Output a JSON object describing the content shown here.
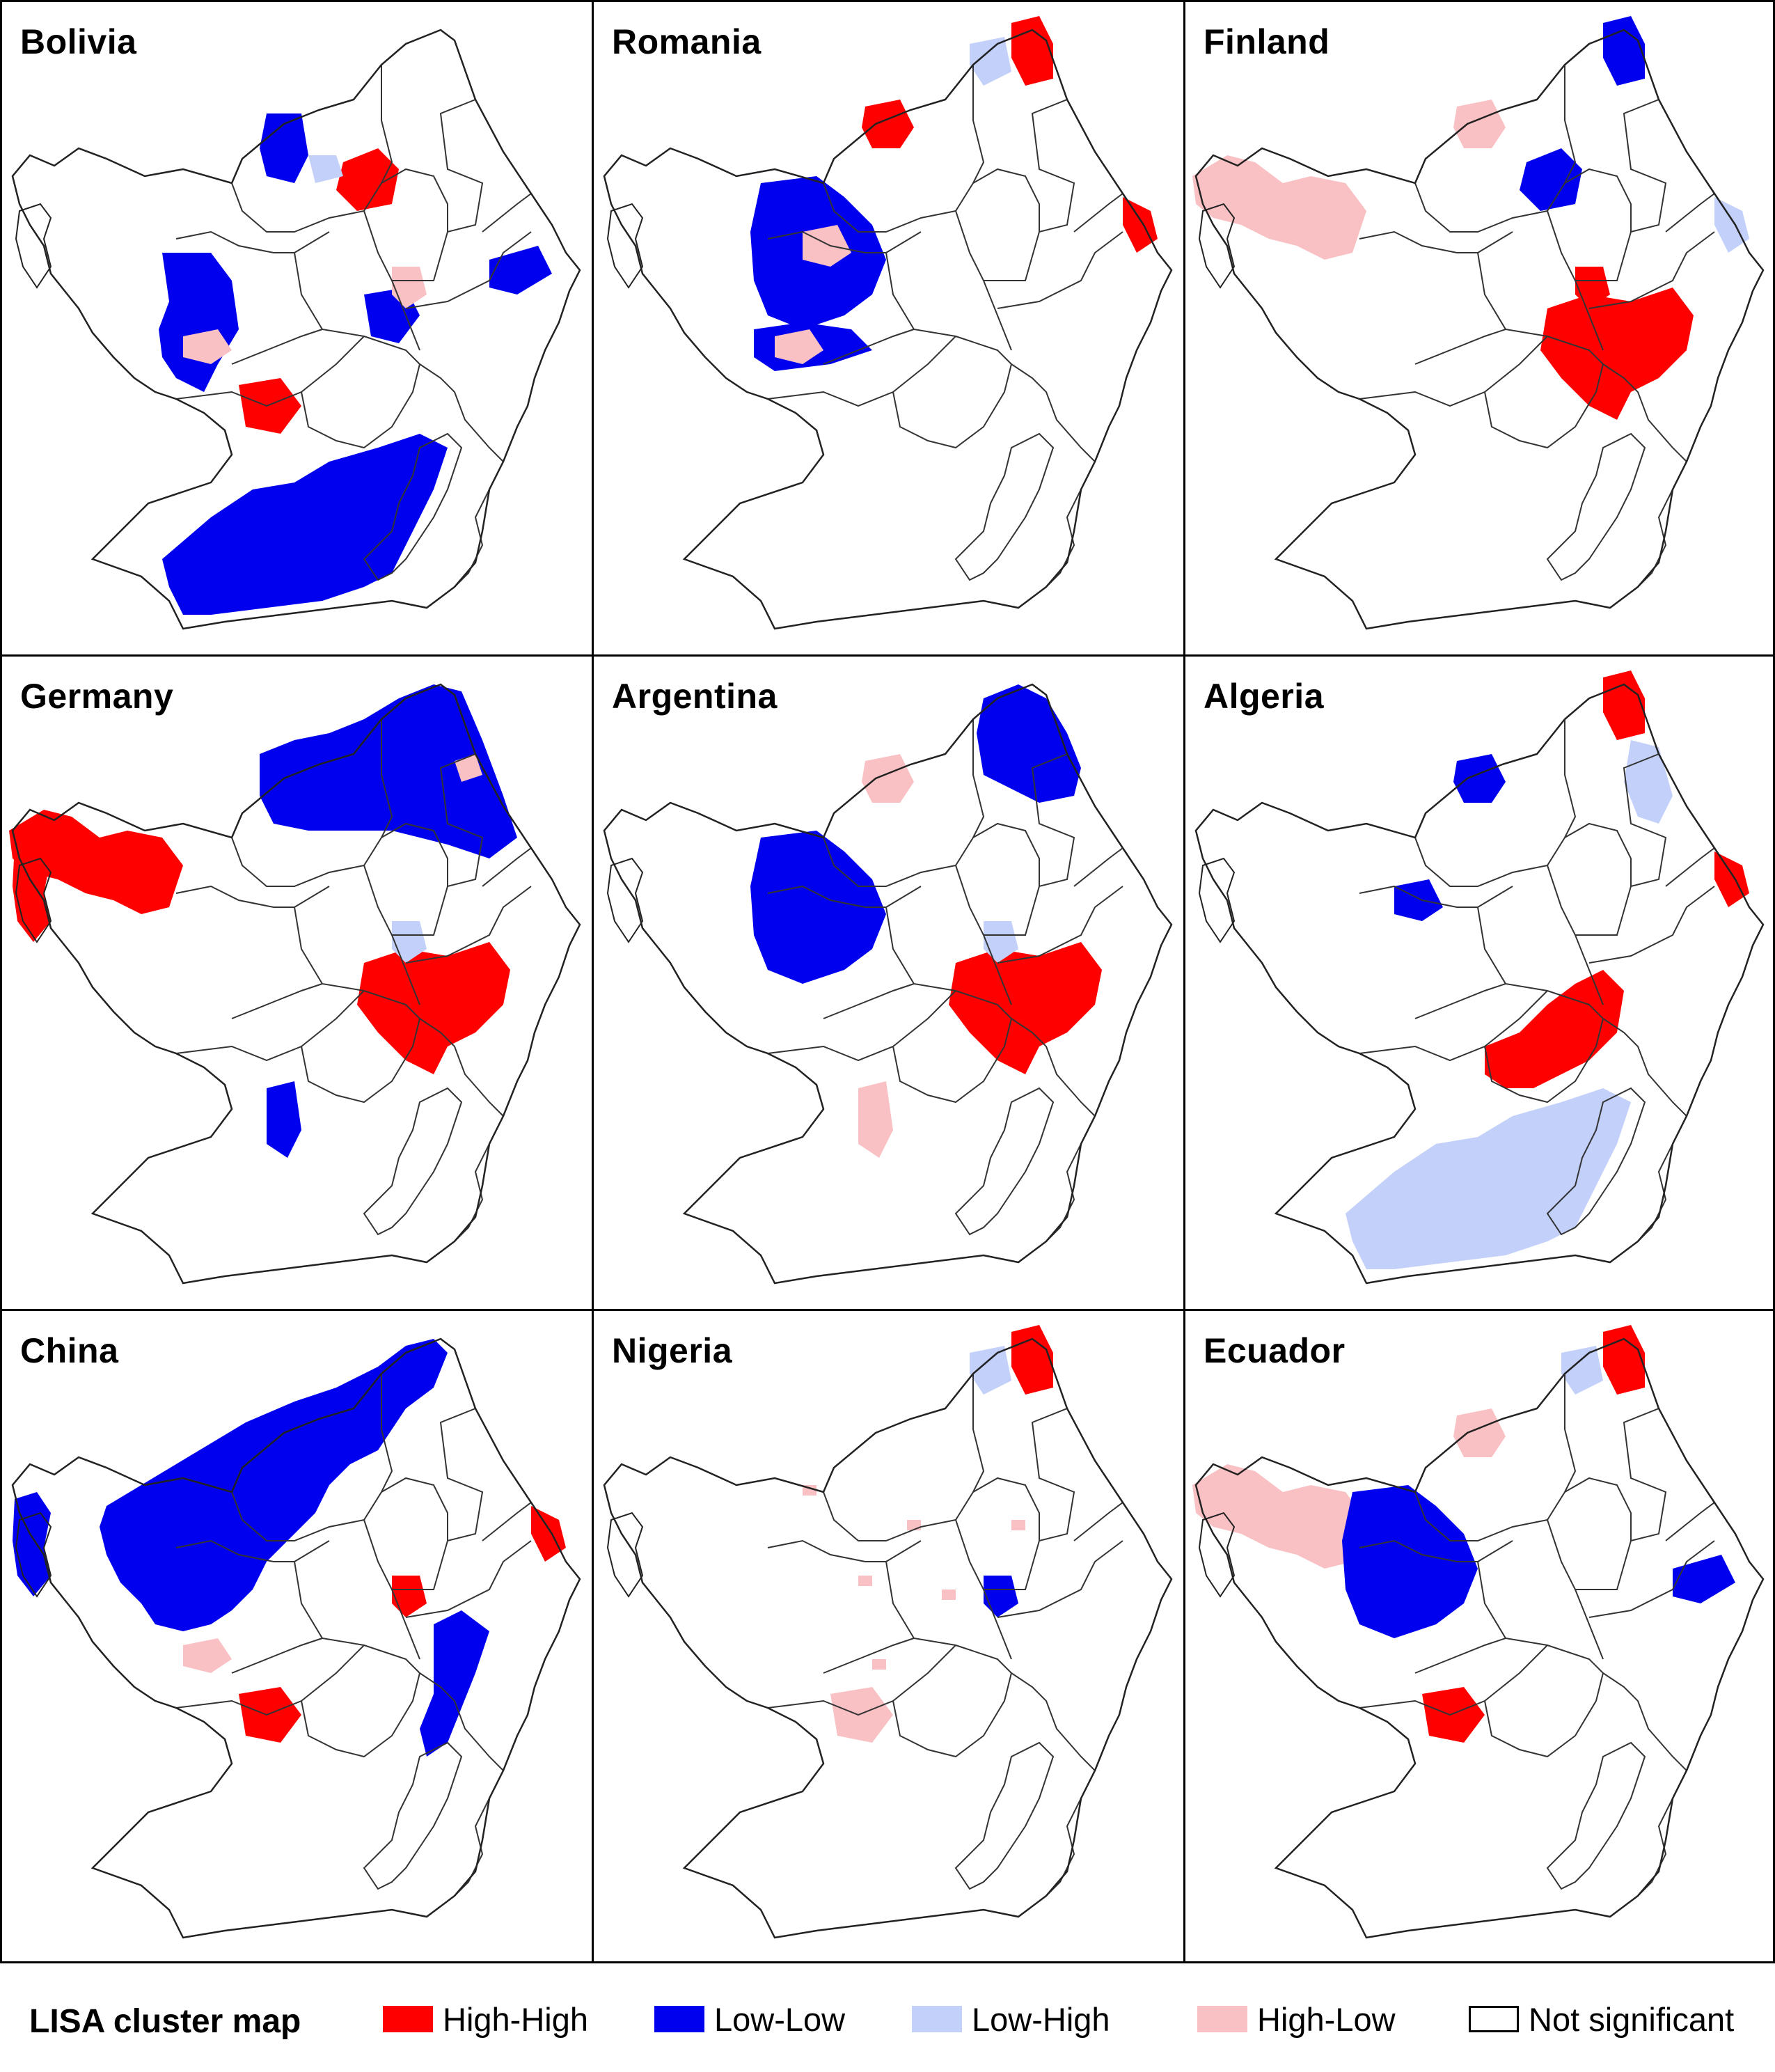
{
  "colors": {
    "high_high": "#ff0000",
    "low_low": "#0000ee",
    "low_high": "#c2d0fa",
    "high_low": "#f9c1c4",
    "not_significant": "#ffffff",
    "boundary": "#222222"
  },
  "panels": [
    {
      "title": "Bolivia",
      "regions": [
        {
          "cls": "low_low",
          "shape": "w_block"
        },
        {
          "cls": "low_low",
          "shape": "n_blob"
        },
        {
          "cls": "low_low",
          "shape": "port_zone"
        },
        {
          "cls": "low_low",
          "shape": "ne_patch"
        },
        {
          "cls": "low_low",
          "shape": "c_patch"
        },
        {
          "cls": "high_high",
          "shape": "n_small"
        },
        {
          "cls": "high_high",
          "shape": "sw_small"
        },
        {
          "cls": "high_low",
          "shape": "w_small"
        },
        {
          "cls": "high_low",
          "shape": "c_small"
        },
        {
          "cls": "low_high",
          "shape": "n_center"
        }
      ]
    },
    {
      "title": "Romania",
      "regions": [
        {
          "cls": "low_low",
          "shape": "wc_block"
        },
        {
          "cls": "low_low",
          "shape": "sw_strip"
        },
        {
          "cls": "high_high",
          "shape": "n_blob_small"
        },
        {
          "cls": "high_high",
          "shape": "ne_top"
        },
        {
          "cls": "high_high",
          "shape": "e_small"
        },
        {
          "cls": "low_high",
          "shape": "ne_top_left"
        },
        {
          "cls": "high_low",
          "shape": "w_small"
        },
        {
          "cls": "high_low",
          "shape": "wc_small"
        }
      ]
    },
    {
      "title": "Finland",
      "regions": [
        {
          "cls": "high_low",
          "shape": "w_lobe"
        },
        {
          "cls": "high_low",
          "shape": "n_blob_small"
        },
        {
          "cls": "high_high",
          "shape": "se_block"
        },
        {
          "cls": "high_high",
          "shape": "c_small"
        },
        {
          "cls": "low_low",
          "shape": "ne_top"
        },
        {
          "cls": "low_low",
          "shape": "n_small"
        },
        {
          "cls": "low_high",
          "shape": "e_small"
        }
      ]
    },
    {
      "title": "Germany",
      "regions": [
        {
          "cls": "high_high",
          "shape": "w_lobe"
        },
        {
          "cls": "high_high",
          "shape": "island"
        },
        {
          "cls": "high_high",
          "shape": "se_block"
        },
        {
          "cls": "low_low",
          "shape": "ne_big"
        },
        {
          "cls": "low_low",
          "shape": "s_small"
        },
        {
          "cls": "high_low",
          "shape": "ne_small"
        },
        {
          "cls": "low_high",
          "shape": "c_small"
        }
      ]
    },
    {
      "title": "Argentina",
      "regions": [
        {
          "cls": "low_low",
          "shape": "ne_big_small"
        },
        {
          "cls": "low_low",
          "shape": "wc_block"
        },
        {
          "cls": "high_high",
          "shape": "se_block"
        },
        {
          "cls": "high_low",
          "shape": "n_blob_small"
        },
        {
          "cls": "high_low",
          "shape": "s_small"
        },
        {
          "cls": "low_high",
          "shape": "c_small"
        }
      ]
    },
    {
      "title": "Algeria",
      "regions": [
        {
          "cls": "low_high",
          "shape": "port_zone"
        },
        {
          "cls": "low_high",
          "shape": "ne_strip"
        },
        {
          "cls": "high_high",
          "shape": "c_big"
        },
        {
          "cls": "high_high",
          "shape": "ne_top"
        },
        {
          "cls": "high_high",
          "shape": "e_small"
        },
        {
          "cls": "low_low",
          "shape": "n_blob_small"
        },
        {
          "cls": "low_low",
          "shape": "wc_small"
        }
      ]
    },
    {
      "title": "China",
      "regions": [
        {
          "cls": "low_low",
          "shape": "nw_huge"
        },
        {
          "cls": "low_low",
          "shape": "island"
        },
        {
          "cls": "low_low",
          "shape": "coast_strip"
        },
        {
          "cls": "high_high",
          "shape": "c_small"
        },
        {
          "cls": "high_high",
          "shape": "sw_small"
        },
        {
          "cls": "high_high",
          "shape": "e_small"
        },
        {
          "cls": "high_low",
          "shape": "w_small"
        }
      ]
    },
    {
      "title": "Nigeria",
      "regions": [
        {
          "cls": "high_high",
          "shape": "ne_top"
        },
        {
          "cls": "low_high",
          "shape": "ne_top_left"
        },
        {
          "cls": "low_low",
          "shape": "c_small"
        },
        {
          "cls": "high_low",
          "shape": "sw_small"
        },
        {
          "cls": "high_low",
          "shape": "scatter"
        }
      ]
    },
    {
      "title": "Ecuador",
      "regions": [
        {
          "cls": "high_low",
          "shape": "w_lobe"
        },
        {
          "cls": "high_low",
          "shape": "n_blob_small"
        },
        {
          "cls": "high_high",
          "shape": "ne_top"
        },
        {
          "cls": "high_high",
          "shape": "sw_small"
        },
        {
          "cls": "low_low",
          "shape": "wc_block"
        },
        {
          "cls": "low_low",
          "shape": "ne_patch"
        },
        {
          "cls": "low_high",
          "shape": "ne_top_left"
        }
      ]
    }
  ],
  "legend": {
    "title": "LISA cluster map",
    "items": [
      {
        "label": "High-High",
        "cls": "high_high"
      },
      {
        "label": "Low-Low",
        "cls": "low_low"
      },
      {
        "label": "Low-High",
        "cls": "low_high"
      },
      {
        "label": "High-Low",
        "cls": "high_low"
      },
      {
        "label": "Not significant",
        "cls": "not_significant"
      }
    ]
  }
}
